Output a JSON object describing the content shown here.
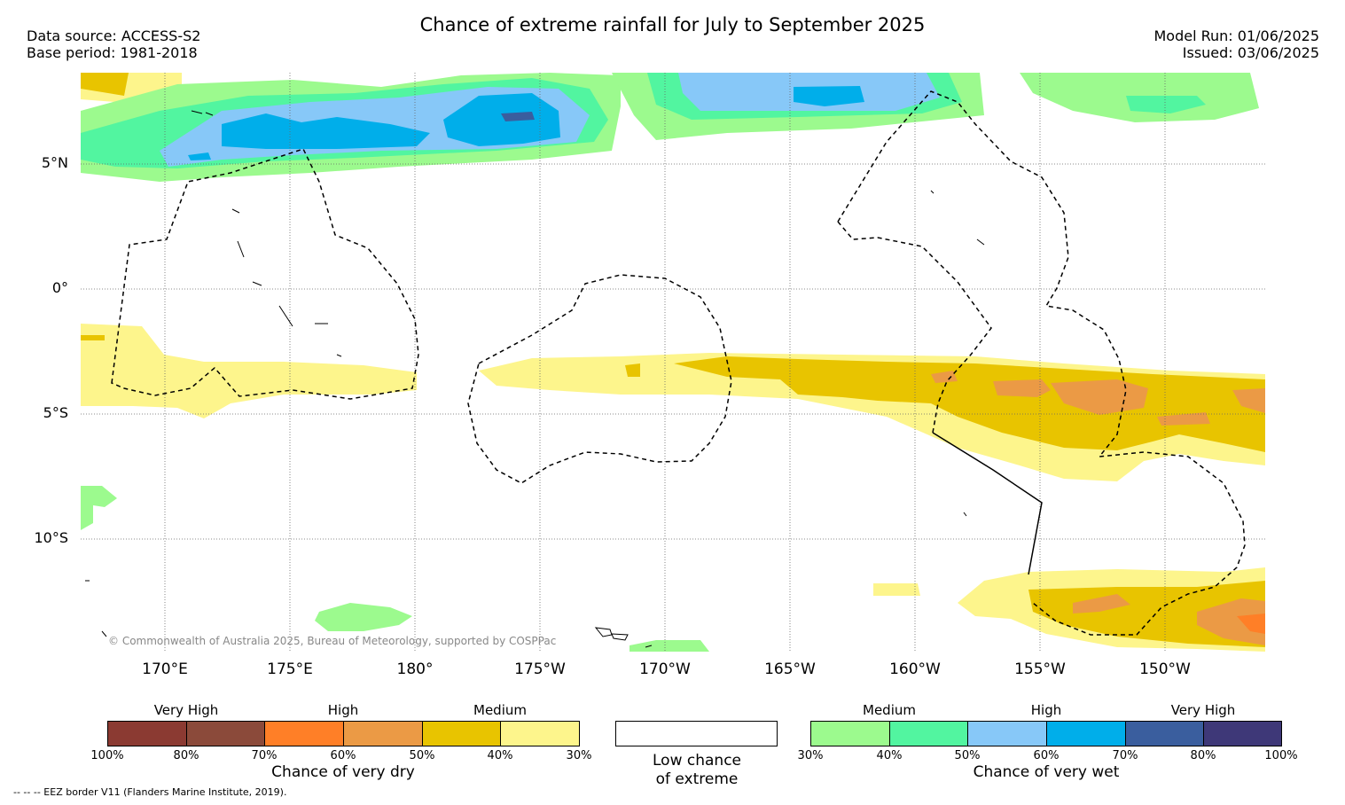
{
  "title": "Chance of extreme rainfall for July to September 2025",
  "header": {
    "data_source": "Data source: ACCESS-S2",
    "base_period": "Base period: 1981-2018",
    "model_run": "Model Run: 01/06/2025",
    "issued": "Issued: 03/06/2025"
  },
  "map": {
    "lat_labels": [
      "5°N",
      "0°",
      "5°S",
      "10°S"
    ],
    "lon_labels": [
      "170°E",
      "175°E",
      "180°",
      "175°W",
      "170°W",
      "165°W",
      "160°W",
      "155°W",
      "150°W"
    ],
    "copyright": "© Commonwealth of Australia 2025, Bureau of Meteorology, supported by COSPPac",
    "eez_note": "--  --  -- EEZ border V11 (Flanders Marine Institute, 2019)."
  },
  "legend": {
    "dry": {
      "levels": [
        "Very High",
        "High",
        "Medium"
      ],
      "colors": [
        "#8B3A32",
        "#8B4A3A",
        "#FF7F27",
        "#EB9A45",
        "#E8C400",
        "#FDF58C"
      ],
      "ticks": [
        "100%",
        "80%",
        "70%",
        "60%",
        "50%",
        "40%",
        "30%"
      ],
      "caption": "Chance of very dry"
    },
    "low": {
      "caption_line1": "Low chance",
      "caption_line2": "of extreme"
    },
    "wet": {
      "levels": [
        "Medium",
        "High",
        "Very High"
      ],
      "colors": [
        "#9CFA8E",
        "#52F5A0",
        "#87C8F8",
        "#00AEEA",
        "#3A5E9E",
        "#3E3878"
      ],
      "ticks": [
        "30%",
        "40%",
        "50%",
        "60%",
        "70%",
        "80%",
        "100%"
      ],
      "caption": "Chance of very wet"
    }
  }
}
